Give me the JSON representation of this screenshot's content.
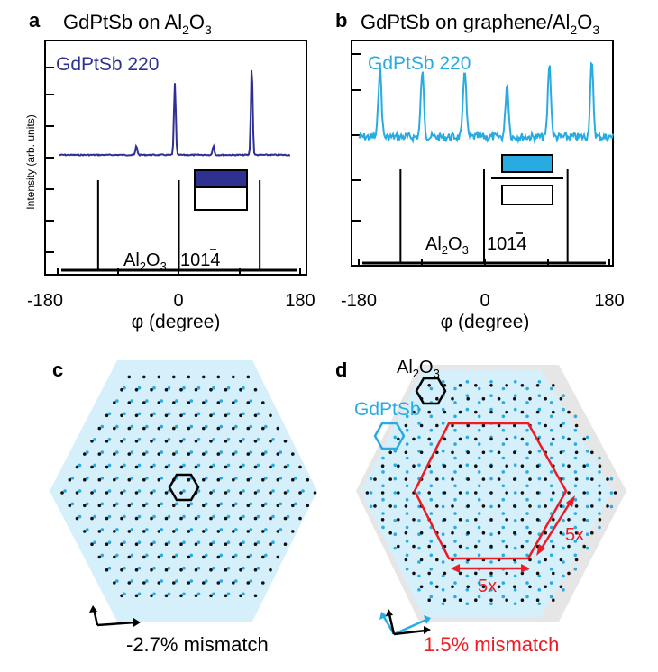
{
  "panels": {
    "a": {
      "letter": "a",
      "title_prefix": "GdPtSb on Al",
      "title_sub": "2",
      "title_mid": "O",
      "title_sub2": "3",
      "series_label": "GdPtSb 220",
      "series_color": "#2e3192",
      "ref_label_a": "Al",
      "ref_sub1": "2",
      "ref_label_b": "O",
      "ref_sub2": "3",
      "ref_index": "1014",
      "ylabel": "Intensity (arb. units)",
      "xlabel": "φ (degree)",
      "ticks": [
        "-180",
        "0",
        "180"
      ]
    },
    "b": {
      "letter": "b",
      "title_prefix": "GdPtSb on graphene/Al",
      "title_sub": "2",
      "title_mid": "O",
      "title_sub2": "3",
      "series_label": "GdPtSb 220",
      "series_color": "#29abe2",
      "ref_label_a": "Al",
      "ref_sub1": "2",
      "ref_label_b": "O",
      "ref_sub2": "3",
      "ref_index": "1014",
      "xlabel": "φ (degree)",
      "ticks": [
        "-180",
        "0",
        "180"
      ]
    },
    "c": {
      "letter": "c",
      "mismatch": "-2.7% mismatch"
    },
    "d": {
      "letter": "d",
      "al_label": "Al",
      "al_sub1": "2",
      "al_mid": "O",
      "al_sub2": "3",
      "gd_label": "GdPtSb",
      "scale_right": "5x",
      "scale_bottom": "5x",
      "mismatch": "1.5% mismatch",
      "mismatch_color": "#ed1c24"
    }
  },
  "chart_data": [
    {
      "type": "line",
      "panel": "a",
      "xlim": [
        -180,
        180
      ],
      "series": [
        {
          "name": "GdPtSb 220",
          "peaks_x": [
            -60,
            0,
            60,
            120
          ],
          "peaks_rel_height": [
            0.1,
            0.8,
            0.1,
            1.0
          ]
        },
        {
          "name": "Al2O3 1014",
          "peaks_x": [
            -120,
            0,
            120
          ]
        }
      ]
    },
    {
      "type": "line",
      "panel": "b",
      "xlim": [
        -180,
        180
      ],
      "series": [
        {
          "name": "GdPtSb 220",
          "peaks_x": [
            -150,
            -90,
            -30,
            30,
            90,
            150
          ],
          "peaks_rel_height": [
            0.85,
            0.8,
            0.85,
            0.65,
            0.9,
            0.9
          ]
        },
        {
          "name": "Al2O3 1014",
          "peaks_x": [
            -120,
            0,
            120
          ]
        }
      ]
    }
  ]
}
